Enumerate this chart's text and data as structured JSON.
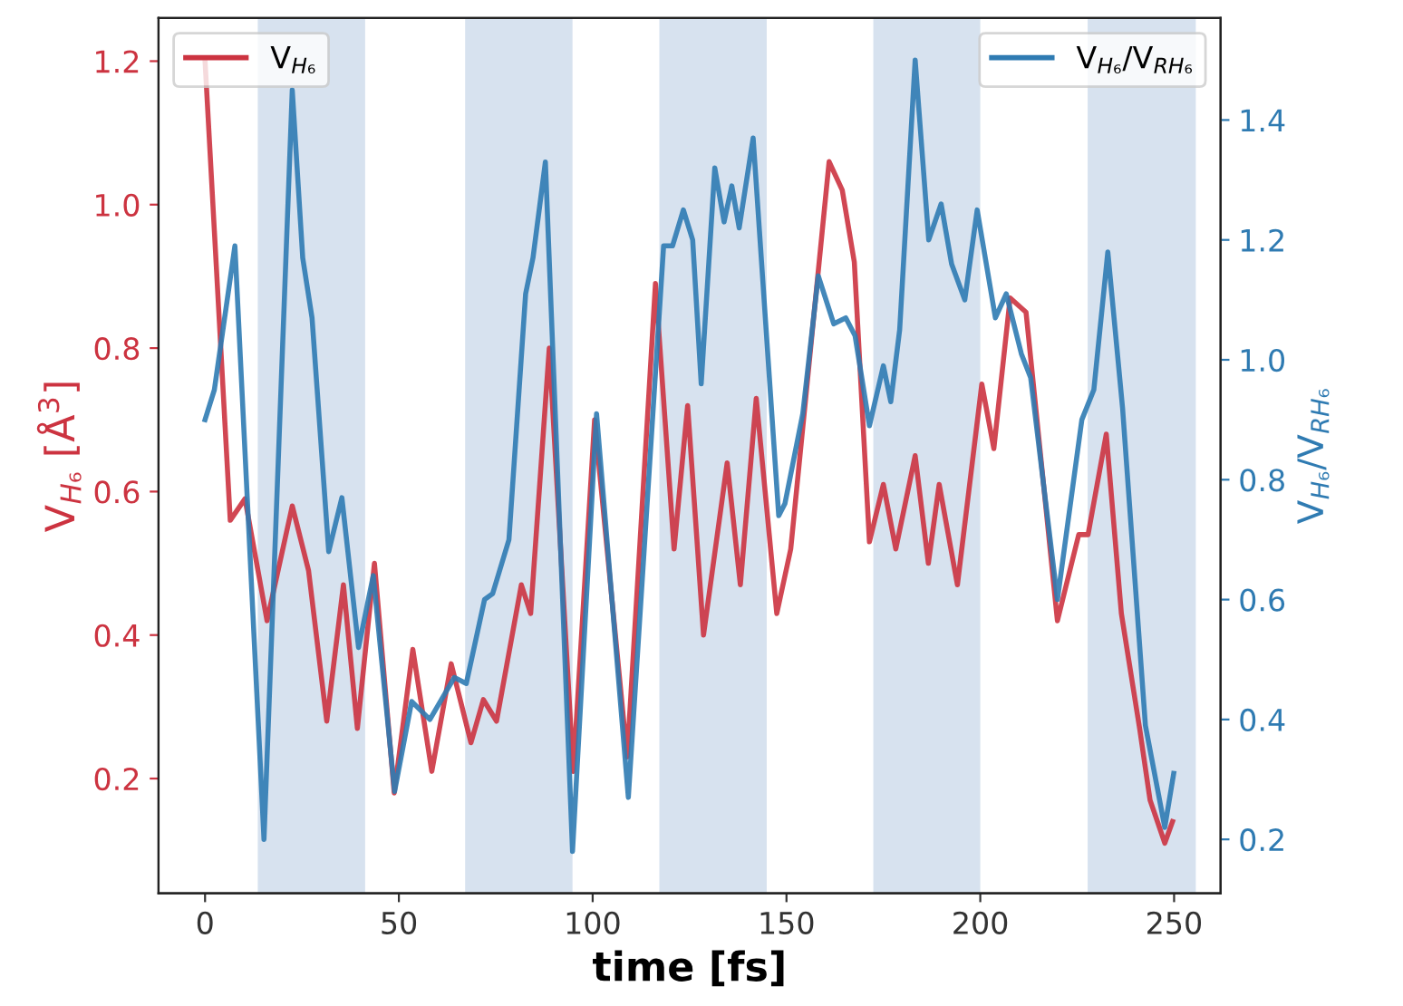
{
  "chart_data": {
    "type": "line",
    "xlabel": "time [fs]",
    "ylabel": "V$_{H₆}$ [Å$^{3}$]",
    "y2label": "V$_{H₆}$/V$_{RH₆}$",
    "xlim": [
      -12,
      262
    ],
    "xticks": [
      0,
      50,
      100,
      150,
      200,
      250
    ],
    "ylim": [
      0.04,
      1.26
    ],
    "yticks": [
      0.2,
      0.4,
      0.6,
      0.8,
      {
        "value": 1,
        "label": "1.0"
      },
      1.2
    ],
    "y2lim": [
      0.11,
      1.57
    ],
    "y2ticks": [
      0.2,
      0.4,
      0.6,
      0.8,
      {
        "value": 1,
        "label": "1.0"
      },
      1.2,
      1.4
    ],
    "grid": false,
    "legend": "top",
    "line_style": "solid",
    "bands": [
      {
        "axis": "x",
        "from": 13.6,
        "to": 41.3,
        "color": "#d7e2ef"
      },
      {
        "axis": "x",
        "from": 67.1,
        "to": 94.8,
        "color": "#d7e2ef"
      },
      {
        "axis": "x",
        "from": 117.2,
        "to": 144.9,
        "color": "#d7e2ef"
      },
      {
        "axis": "x",
        "from": 172.4,
        "to": 200.0,
        "color": "#d7e2ef"
      },
      {
        "axis": "x",
        "from": 227.7,
        "to": 255.6,
        "color": "#d7e2ef"
      }
    ],
    "series": [
      {
        "name": "V$_{H₆}$",
        "color": "#cc3340",
        "x": [
          0,
          6.5,
          10.3,
          16,
          22.5,
          26.7,
          31.4,
          35.7,
          39.3,
          43.7,
          48.8,
          53.6,
          58.5,
          63.5,
          68.6,
          71.8,
          75.2,
          81.6,
          84,
          88.8,
          95,
          100.5,
          108.9,
          116.2,
          121,
          124.5,
          128.6,
          134.7,
          138.1,
          142.2,
          147.5,
          151.1,
          161,
          164.4,
          167.5,
          171.4,
          175,
          178.2,
          183.2,
          186.6,
          189.4,
          194.1,
          200.4,
          203.5,
          207.7,
          211.8,
          219.9,
          225.4,
          227.8,
          232.5,
          236.4,
          241.1,
          243.8,
          247.6,
          249.6
        ],
        "values": [
          1.2,
          0.56,
          0.59,
          0.42,
          0.58,
          0.49,
          0.28,
          0.47,
          0.27,
          0.5,
          0.18,
          0.38,
          0.21,
          0.36,
          0.25,
          0.31,
          0.28,
          0.47,
          0.43,
          0.8,
          0.21,
          0.7,
          0.23,
          0.89,
          0.52,
          0.72,
          0.4,
          0.64,
          0.47,
          0.73,
          0.43,
          0.52,
          1.06,
          1.02,
          0.92,
          0.53,
          0.61,
          0.52,
          0.65,
          0.5,
          0.61,
          0.47,
          0.75,
          0.66,
          0.87,
          0.85,
          0.42,
          0.54,
          0.54,
          0.68,
          0.43,
          0.27,
          0.17,
          0.11,
          0.14
        ]
      },
      {
        "name": "V$_{H₆}$/V$_{RH₆}$",
        "color": "#2f7bb2",
        "axis": "y2",
        "x": [
          0,
          2.4,
          7.7,
          15.2,
          22.5,
          25.2,
          27.6,
          31.9,
          35.3,
          39.6,
          43.4,
          48.9,
          53.3,
          58,
          64.3,
          67.4,
          72.1,
          74.2,
          78.4,
          82.7,
          84.6,
          87.8,
          94.8,
          101,
          109.2,
          118.3,
          120.6,
          123.4,
          125.8,
          128,
          131.5,
          133.9,
          135.9,
          137.8,
          141.4,
          148,
          149.6,
          154.2,
          158.2,
          162.2,
          165.3,
          167.7,
          171.4,
          175,
          176.9,
          179.2,
          183.2,
          186.7,
          189.9,
          192.6,
          196,
          199.2,
          203.9,
          206.7,
          210.6,
          213,
          219.9,
          226.2,
          229.3,
          232.9,
          236.7,
          242.6,
          247.6,
          249.9
        ],
        "values": [
          0.9,
          0.95,
          1.19,
          0.2,
          1.45,
          1.17,
          1.07,
          0.68,
          0.77,
          0.52,
          0.64,
          0.28,
          0.43,
          0.4,
          0.47,
          0.46,
          0.6,
          0.61,
          0.7,
          1.11,
          1.17,
          1.33,
          0.18,
          0.91,
          0.27,
          1.19,
          1.19,
          1.25,
          1.2,
          0.96,
          1.32,
          1.23,
          1.29,
          1.22,
          1.37,
          0.74,
          0.76,
          0.91,
          1.14,
          1.06,
          1.07,
          1.04,
          0.89,
          0.99,
          0.93,
          1.05,
          1.5,
          1.2,
          1.26,
          1.16,
          1.1,
          1.25,
          1.07,
          1.11,
          1.01,
          0.97,
          0.6,
          0.9,
          0.95,
          1.18,
          0.92,
          0.39,
          0.22,
          0.31
        ]
      }
    ]
  }
}
